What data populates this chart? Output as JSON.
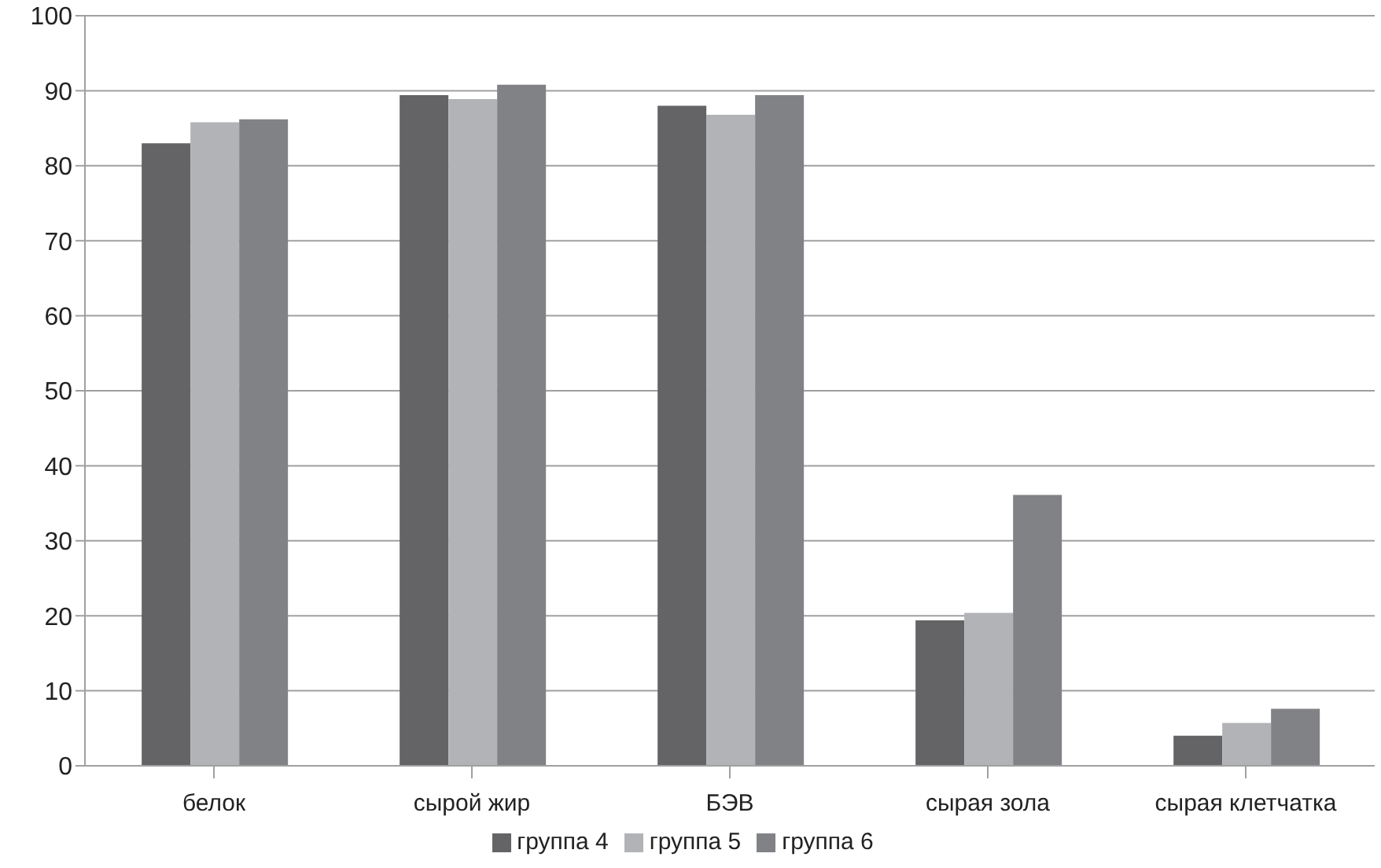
{
  "chart_data": {
    "type": "bar",
    "categories": [
      "белок",
      "сырой жир",
      "БЭВ",
      "сырая зола",
      "сырая клетчатка"
    ],
    "series": [
      {
        "name": "группа 4",
        "color": "#646466",
        "values": [
          83.0,
          89.4,
          88.0,
          19.4,
          4.0
        ]
      },
      {
        "name": "группа 5",
        "color": "#b2b3b6",
        "values": [
          85.8,
          88.9,
          86.8,
          20.4,
          5.7
        ]
      },
      {
        "name": "группа 6",
        "color": "#818286",
        "values": [
          86.2,
          90.8,
          89.4,
          36.1,
          7.6
        ]
      }
    ],
    "ylim": [
      0,
      100
    ],
    "yticks": [
      0,
      10,
      20,
      30,
      40,
      50,
      60,
      70,
      80,
      90,
      100
    ],
    "grid": "y",
    "legend": "bottom"
  }
}
